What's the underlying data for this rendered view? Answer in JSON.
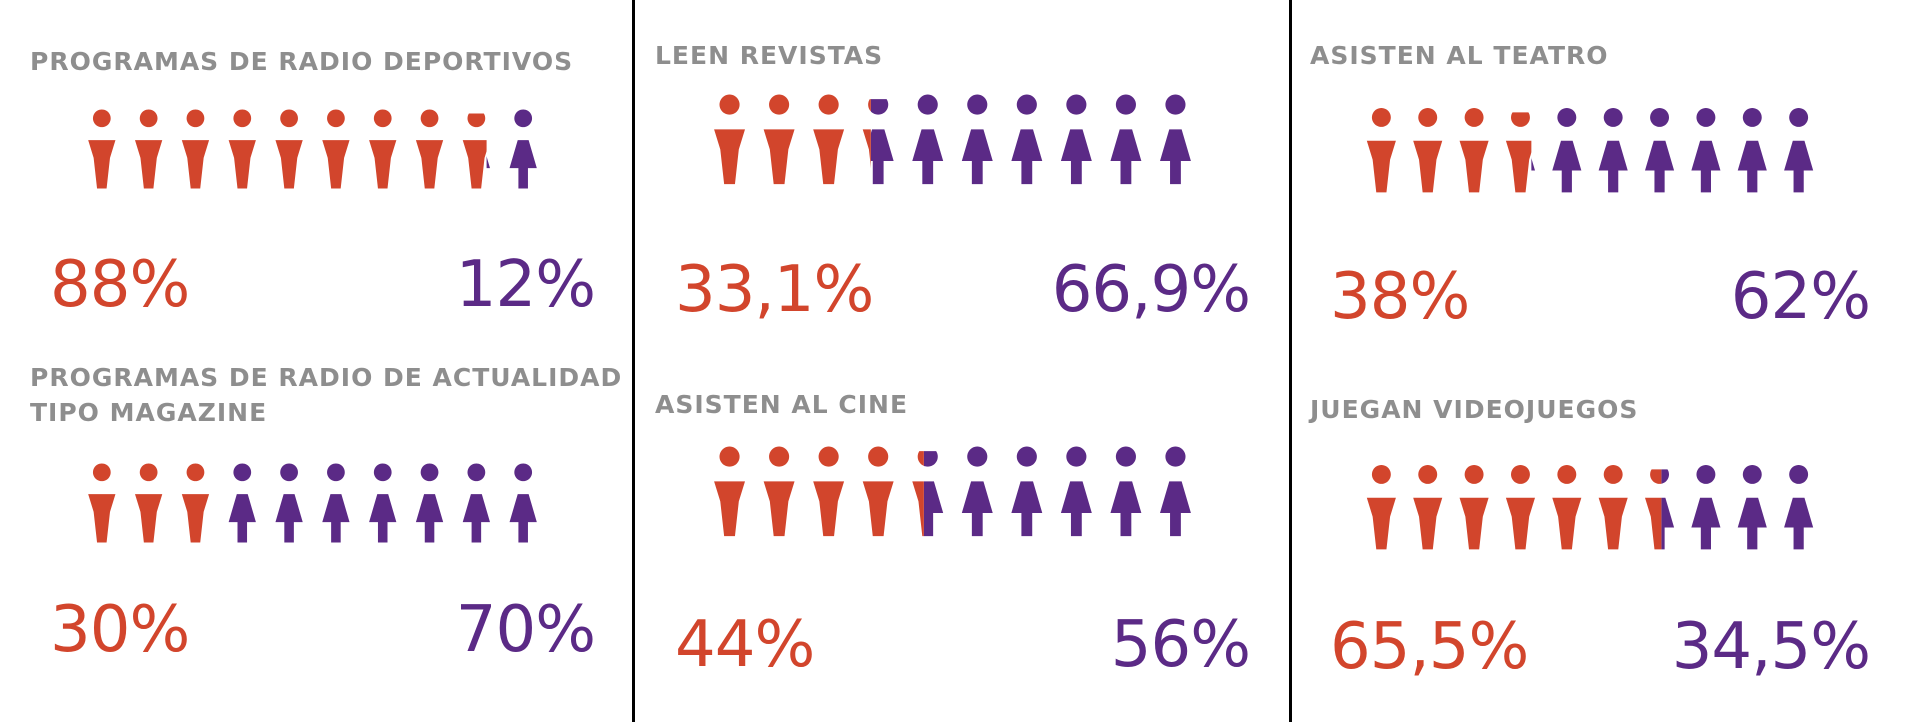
{
  "colors": {
    "men": "#d2452c",
    "women": "#5b2a86",
    "title": "#8e8e8e",
    "divider": "#000000"
  },
  "icons": {
    "men": "man-figure-icon",
    "women": "woman-figure-icon"
  },
  "chart_data": [
    {
      "type": "pictogram",
      "title": "PROGRAMAS DE RADIO DEPORTIVOS",
      "title_lines": [
        "PROGRAMAS DE RADIO DEPORTIVOS"
      ],
      "icons_total": 10,
      "series": [
        {
          "values": [
            88
          ],
          "label": "88%",
          "color": "#d2452c"
        },
        {
          "values": [
            12
          ],
          "label": "12%",
          "color": "#5b2a86"
        }
      ]
    },
    {
      "type": "pictogram",
      "title": "PROGRAMAS DE RADIO DE ACTUALIDAD TIPO MAGAZINE",
      "title_lines": [
        "PROGRAMAS DE RADIO DE ACTUALIDAD",
        "TIPO MAGAZINE"
      ],
      "icons_total": 10,
      "series": [
        {
          "values": [
            30
          ],
          "label": "30%",
          "color": "#d2452c"
        },
        {
          "values": [
            70
          ],
          "label": "70%",
          "color": "#5b2a86"
        }
      ]
    },
    {
      "type": "pictogram",
      "title": "LEEN REVISTAS",
      "title_lines": [
        "LEEN REVISTAS"
      ],
      "icons_total": 10,
      "series": [
        {
          "values": [
            33.1
          ],
          "label": "33,1%",
          "color": "#d2452c"
        },
        {
          "values": [
            66.9
          ],
          "label": "66,9%",
          "color": "#5b2a86"
        }
      ]
    },
    {
      "type": "pictogram",
      "title": "ASISTEN AL CINE",
      "title_lines": [
        "ASISTEN AL CINE"
      ],
      "icons_total": 10,
      "series": [
        {
          "values": [
            44
          ],
          "label": "44%",
          "color": "#d2452c"
        },
        {
          "values": [
            56
          ],
          "label": "56%",
          "color": "#5b2a86"
        }
      ]
    },
    {
      "type": "pictogram",
      "title": "ASISTEN AL TEATRO",
      "title_lines": [
        "ASISTEN AL TEATRO"
      ],
      "icons_total": 10,
      "series": [
        {
          "values": [
            38
          ],
          "label": "38%",
          "color": "#d2452c"
        },
        {
          "values": [
            62
          ],
          "label": "62%",
          "color": "#5b2a86"
        }
      ]
    },
    {
      "type": "pictogram",
      "title": "JUEGAN VIDEOJUEGOS",
      "title_lines": [
        "JUEGAN VIDEOJUEGOS"
      ],
      "icons_total": 10,
      "series": [
        {
          "values": [
            65.5
          ],
          "label": "65,5%",
          "color": "#d2452c"
        },
        {
          "values": [
            34.5
          ],
          "label": "34,5%",
          "color": "#5b2a86"
        }
      ]
    }
  ]
}
